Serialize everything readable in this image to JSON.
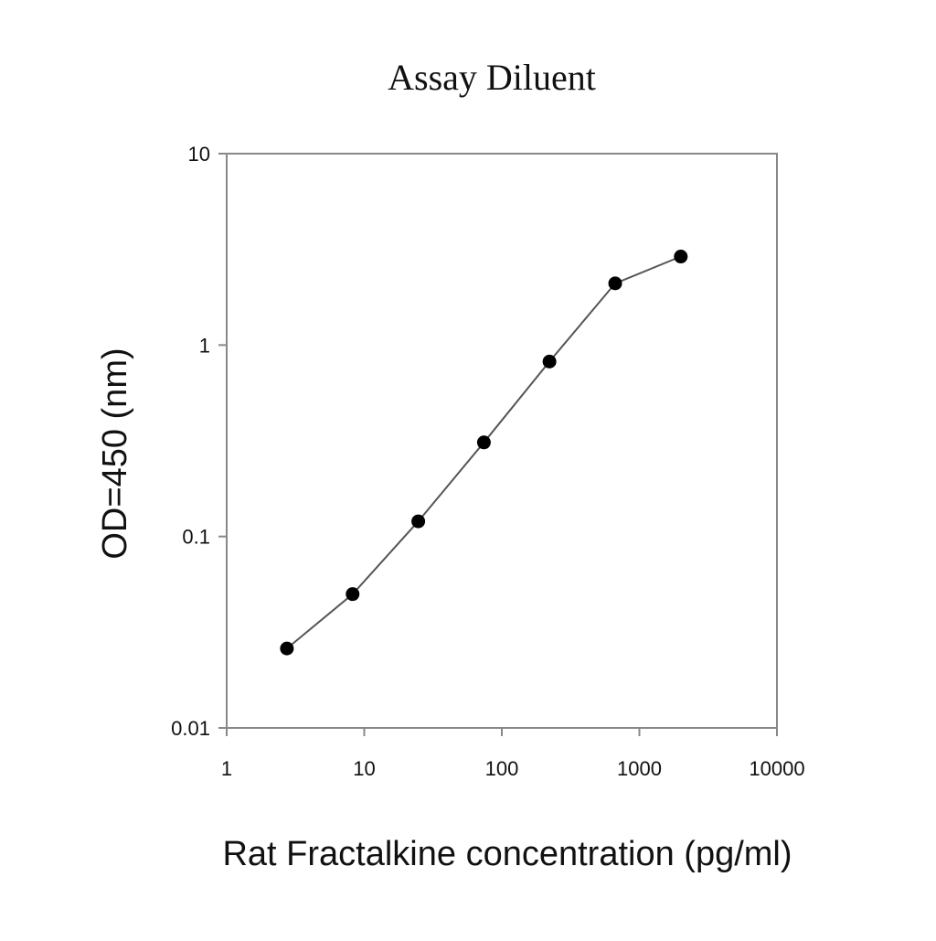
{
  "chart_data": {
    "type": "line",
    "title": "Assay Diluent",
    "xlabel": "Rat Fractalkine concentration (pg/ml)",
    "ylabel": "OD=450 (nm)",
    "x_scale": "log",
    "y_scale": "log",
    "xlim": [
      1,
      10000
    ],
    "ylim": [
      0.01,
      10
    ],
    "x_ticks": [
      "1",
      "10",
      "100",
      "1000",
      "10000"
    ],
    "y_ticks": [
      "0.01",
      "0.1",
      "1",
      "10"
    ],
    "x_tick_values": [
      1,
      10,
      100,
      1000,
      10000
    ],
    "y_tick_values": [
      0.01,
      0.1,
      1,
      10
    ],
    "grid": false,
    "series": [
      {
        "x": [
          2.74,
          8.23,
          24.7,
          74.1,
          222,
          667,
          2000
        ],
        "y": [
          0.026,
          0.05,
          0.12,
          0.31,
          0.82,
          2.1,
          2.9
        ]
      }
    ],
    "colors": {
      "line": "#555555",
      "marker": "#000000",
      "axis": "#888888"
    }
  }
}
